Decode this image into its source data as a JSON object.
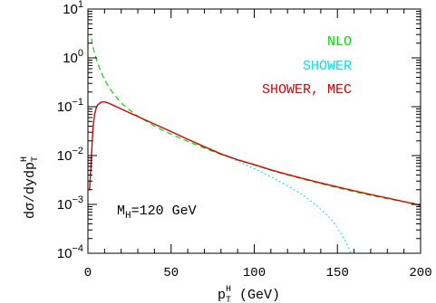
{
  "chart_data": {
    "type": "line",
    "y_scale": "log",
    "xlim": [
      0,
      200
    ],
    "ylim": [
      0.0001,
      10
    ],
    "x_ticks": [
      0,
      50,
      100,
      150,
      200
    ],
    "x_tick_labels": [
      "0",
      "50",
      "100",
      "150",
      "200"
    ],
    "y_ticks": [
      0.0001,
      0.001,
      0.01,
      0.1,
      1,
      10
    ],
    "y_tick_labels": [
      {
        "base": "10",
        "exp": "−4"
      },
      {
        "base": "10",
        "exp": "−3"
      },
      {
        "base": "10",
        "exp": "−2"
      },
      {
        "base": "10",
        "exp": "−1"
      },
      {
        "base": "10",
        "exp": "0"
      },
      {
        "base": "10",
        "exp": "1"
      }
    ],
    "xlabel": {
      "main": "p",
      "sub": "T",
      "sup": "H",
      "rest": " (GeV)"
    },
    "ylabel": {
      "main": "dσ/dydp",
      "sub": "T",
      "sup": "H"
    },
    "annotation": {
      "main": "M",
      "sub": "H",
      "rest": "=120 GeV"
    },
    "legend_position": "top-right",
    "series": [
      {
        "name": "NLO",
        "color": "#00dd00",
        "dash": "dashed",
        "x": [
          2,
          3,
          4,
          5,
          6,
          8,
          10,
          12,
          15,
          20,
          25,
          30,
          40,
          50,
          60,
          70,
          80,
          90,
          100,
          110,
          120,
          130,
          140,
          150,
          160,
          170,
          180,
          190,
          200
        ],
        "y": [
          2.5,
          1.7,
          1.25,
          0.95,
          0.75,
          0.5,
          0.36,
          0.27,
          0.19,
          0.12,
          0.085,
          0.064,
          0.04,
          0.0275,
          0.0195,
          0.0142,
          0.0105,
          0.0081,
          0.0064,
          0.005,
          0.004,
          0.00325,
          0.00265,
          0.0022,
          0.00182,
          0.00153,
          0.00131,
          0.00114,
          0.001
        ]
      },
      {
        "name": "SHOWER",
        "color": "#00e5e5",
        "dash": "dotted",
        "x": [
          1,
          2,
          3,
          4,
          5,
          6,
          8,
          10,
          12,
          15,
          20,
          25,
          30,
          40,
          50,
          60,
          70,
          80,
          90,
          100,
          110,
          120,
          130,
          140,
          145,
          150,
          155,
          158
        ],
        "y": [
          0.002,
          0.008,
          0.035,
          0.07,
          0.095,
          0.11,
          0.124,
          0.126,
          0.12,
          0.108,
          0.09,
          0.075,
          0.063,
          0.044,
          0.031,
          0.0215,
          0.0152,
          0.0108,
          0.0077,
          0.0054,
          0.0037,
          0.0024,
          0.0015,
          0.0008,
          0.00055,
          0.00033,
          0.00017,
          0.0001
        ]
      },
      {
        "name": "SHOWER, MEC",
        "color": "#dd0000",
        "dash": "solid",
        "x": [
          1,
          2,
          3,
          4,
          5,
          6,
          8,
          10,
          12,
          15,
          20,
          25,
          30,
          40,
          50,
          60,
          70,
          80,
          90,
          100,
          110,
          120,
          130,
          140,
          150,
          160,
          170,
          180,
          190,
          200
        ],
        "y": [
          0.002,
          0.008,
          0.035,
          0.07,
          0.095,
          0.11,
          0.124,
          0.126,
          0.12,
          0.108,
          0.09,
          0.075,
          0.063,
          0.044,
          0.031,
          0.0215,
          0.0152,
          0.0108,
          0.0082,
          0.0065,
          0.0051,
          0.0041,
          0.00335,
          0.00275,
          0.00228,
          0.0019,
          0.00159,
          0.00135,
          0.00114,
          0.00095
        ]
      }
    ]
  }
}
